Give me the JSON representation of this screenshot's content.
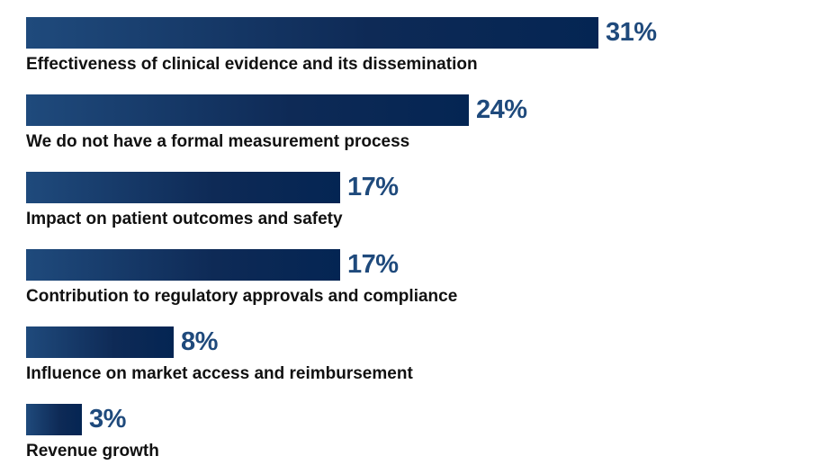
{
  "chart_data": {
    "type": "bar",
    "orientation": "horizontal",
    "categories": [
      "Effectiveness of clinical evidence and its dissemination",
      "We do not have a formal measurement process",
      "Impact on patient outcomes and safety",
      "Contribution to regulatory approvals and compliance",
      "Influence on market access and reimbursement",
      "Revenue growth"
    ],
    "values": [
      31,
      24,
      17,
      17,
      8,
      3
    ],
    "value_labels": [
      "31%",
      "24%",
      "17%",
      "17%",
      "8%",
      "3%"
    ],
    "unit": "%",
    "title": "",
    "xlabel": "",
    "ylabel": "",
    "xlim": [
      0,
      31
    ],
    "grid": false,
    "legend": "none",
    "colors": {
      "bar_start": "#1f4a7c",
      "bar_end": "#042553",
      "value_label": "#1f4a7c",
      "category_label": "#111111"
    }
  }
}
